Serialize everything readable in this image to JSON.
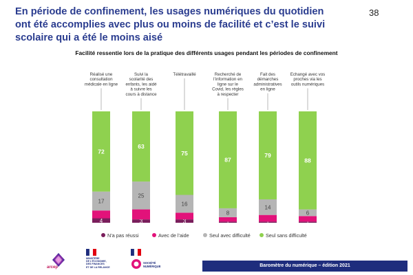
{
  "page": {
    "title": "En période de confinement, les usages numériques du quotidien\nont été accomplies avec plus ou moins de facilité et c’est le suivi\nscolaire qui a été le moins aisé",
    "page_number": "38",
    "footer": "Baromètre  du numérique – édition 2021",
    "logo_text": "arcep",
    "ministry_text": "MINISTÈRE\nDE L'ÉCONOMIE,\nDES FINANCES\nET DE LA RELANCE",
    "agency_text": "SOCIÉTÉ\nNUMÉRIQUE"
  },
  "chart_data": {
    "type": "bar",
    "stacked": true,
    "unit": "%",
    "title": "Facilité ressentie lors de la pratique des différents usages pendant les périodes de confinement",
    "categories": [
      "Réalisé une consultation médicale en ligne",
      "Suivi la scolarité des enfants, les aidé à suivre les cours à distance",
      "Télétravaillé",
      "Recherché de l’information en ligne sur le Covid, les règles à respecter",
      "Fait des démarches administratives en ligne",
      "Echangé avec vos proches via les outils numériques"
    ],
    "series": [
      {
        "name": "N’a pas réussi",
        "color": "#7a1e5c",
        "values": [
          4,
          3,
          3,
          1,
          1,
          1
        ]
      },
      {
        "name": "Avec de l’aide",
        "color": "#e2127a",
        "values": [
          7,
          9,
          6,
          4,
          6,
          5
        ]
      },
      {
        "name": "Seul avec difficulté",
        "color": "#b5b5b5",
        "values": [
          17,
          25,
          16,
          8,
          14,
          6
        ]
      },
      {
        "name": "Seul sans difficulté",
        "color": "#8fd14f",
        "values": [
          72,
          63,
          75,
          87,
          79,
          88
        ]
      }
    ],
    "value_labels": [
      [
        "4",
        "",
        "17",
        "72"
      ],
      [
        "3",
        "",
        "25",
        "63"
      ],
      [
        "3",
        "",
        "16",
        "75"
      ],
      [
        "1",
        "",
        "8",
        "87"
      ],
      [
        "1",
        "",
        "14",
        "79"
      ],
      [
        "1",
        "",
        "6",
        "88"
      ]
    ],
    "legend": [
      "N’a pas réussi",
      "Avec de l’aide",
      "Seul avec difficulté",
      "Seul sans difficulté"
    ],
    "legend_position": "bottom",
    "ylim": [
      0,
      100
    ]
  }
}
